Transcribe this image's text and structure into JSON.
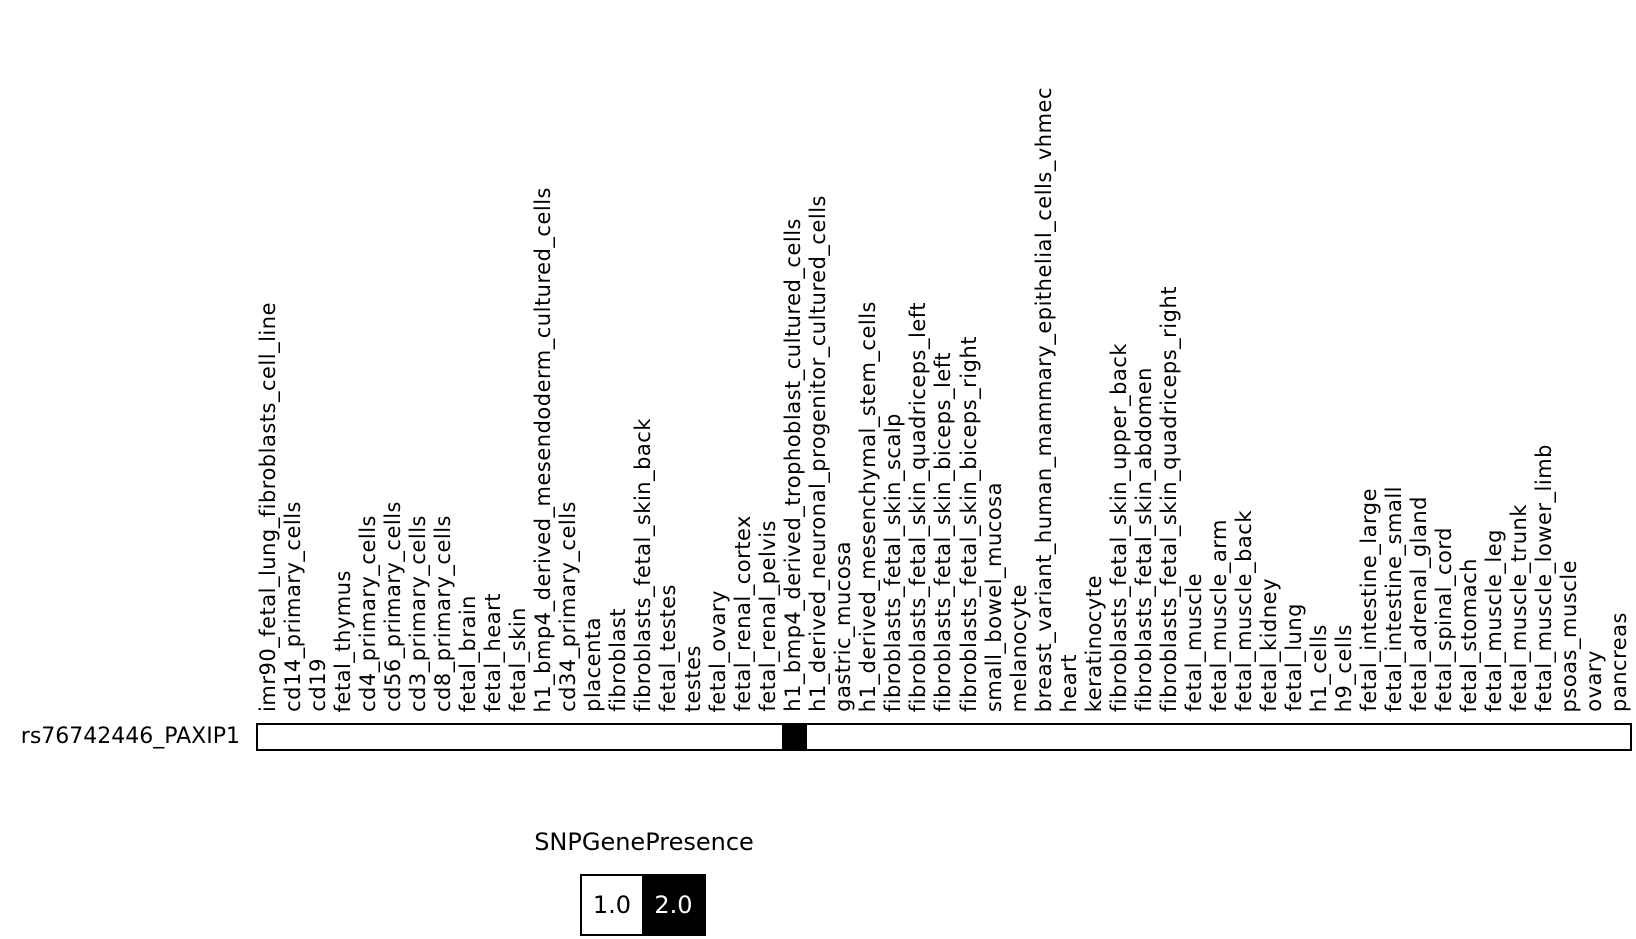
{
  "chart_data": {
    "type": "heatmap",
    "title": "",
    "row_labels": [
      "rs76742446_PAXIP1"
    ],
    "columns": [
      "imr90_fetal_lung_fibroblasts_cell_line",
      "cd14_primary_cells",
      "cd19",
      "fetal_thymus",
      "cd4_primary_cells",
      "cd56_primary_cells",
      "cd3_primary_cells",
      "cd8_primary_cells",
      "fetal_brain",
      "fetal_heart",
      "fetal_skin",
      "h1_bmp4_derived_mesendoderm_cultured_cells",
      "cd34_primary_cells",
      "placenta",
      "fibroblast",
      "fibroblasts_fetal_skin_back",
      "fetal_testes",
      "testes",
      "fetal_ovary",
      "fetal_renal_cortex",
      "fetal_renal_pelvis",
      "h1_bmp4_derived_trophoblast_cultured_cells",
      "h1_derived_neuronal_progenitor_cultured_cells",
      "gastric_mucosa",
      "h1_derived_mesenchymal_stem_cells",
      "fibroblasts_fetal_skin_scalp",
      "fibroblasts_fetal_skin_quadriceps_left",
      "fibroblasts_fetal_skin_biceps_left",
      "fibroblasts_fetal_skin_biceps_right",
      "small_bowel_mucosa",
      "melanocyte",
      "breast_variant_human_mammary_epithelial_cells_vhmec",
      "heart",
      "keratinocyte",
      "fibroblasts_fetal_skin_upper_back",
      "fibroblasts_fetal_skin_abdomen",
      "fibroblasts_fetal_skin_quadriceps_right",
      "fetal_muscle",
      "fetal_muscle_arm",
      "fetal_muscle_back",
      "fetal_kidney",
      "fetal_lung",
      "h1_cells",
      "h9_cells",
      "fetal_intestine_large",
      "fetal_intestine_small",
      "fetal_adrenal_gland",
      "fetal_spinal_cord",
      "fetal_stomach",
      "fetal_muscle_leg",
      "fetal_muscle_trunk",
      "fetal_muscle_lower_limb",
      "psoas_muscle",
      "ovary",
      "pancreas"
    ],
    "values": [
      [
        1.0,
        1.0,
        1.0,
        1.0,
        1.0,
        1.0,
        1.0,
        1.0,
        1.0,
        1.0,
        1.0,
        1.0,
        1.0,
        1.0,
        1.0,
        1.0,
        1.0,
        1.0,
        1.0,
        1.0,
        1.0,
        2.0,
        1.0,
        1.0,
        1.0,
        1.0,
        1.0,
        1.0,
        1.0,
        1.0,
        1.0,
        1.0,
        1.0,
        1.0,
        1.0,
        1.0,
        1.0,
        1.0,
        1.0,
        1.0,
        1.0,
        1.0,
        1.0,
        1.0,
        1.0,
        1.0,
        1.0,
        1.0,
        1.0,
        1.0,
        1.0,
        1.0,
        1.0,
        1.0,
        1.0
      ]
    ],
    "value_colors": {
      "1.0": "#ffffff",
      "2.0": "#000000"
    },
    "value_text_colors": {
      "1.0": "#000000",
      "2.0": "#ffffff"
    },
    "grid": false,
    "legend": {
      "title": "SNPGenePresence",
      "position": "bottom",
      "entries": [
        {
          "label": "1.0",
          "swatch_color": "#ffffff",
          "text_color": "#000000"
        },
        {
          "label": "2.0",
          "swatch_color": "#000000",
          "text_color": "#ffffff"
        }
      ]
    }
  }
}
